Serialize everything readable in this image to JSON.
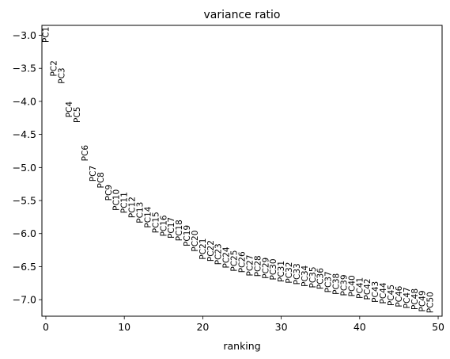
{
  "chart_data": {
    "type": "scatter",
    "title": "variance ratio",
    "xlabel": "ranking",
    "ylabel": "",
    "xlim": [
      -0.5,
      50.5
    ],
    "ylim": [
      -7.25,
      -2.85
    ],
    "xticks": [
      0,
      10,
      20,
      30,
      40,
      50
    ],
    "yticks": [
      -3.0,
      -3.5,
      -4.0,
      -4.5,
      -5.0,
      -5.5,
      -6.0,
      -6.5,
      -7.0
    ],
    "ytick_labels": [
      "−3.0",
      "−3.5",
      "−4.0",
      "−4.5",
      "−5.0",
      "−5.5",
      "−6.0",
      "−6.5",
      "−7.0"
    ],
    "grid": false,
    "points": [
      {
        "label": "PC1",
        "x": 0,
        "y": -2.87
      },
      {
        "label": "PC2",
        "x": 1,
        "y": -3.38
      },
      {
        "label": "PC3",
        "x": 2,
        "y": -3.49
      },
      {
        "label": "PC4",
        "x": 3,
        "y": -4.0
      },
      {
        "label": "PC5",
        "x": 4,
        "y": -4.08
      },
      {
        "label": "PC6",
        "x": 5,
        "y": -4.66
      },
      {
        "label": "PC7",
        "x": 6,
        "y": -4.97
      },
      {
        "label": "PC8",
        "x": 7,
        "y": -5.07
      },
      {
        "label": "PC9",
        "x": 8,
        "y": -5.26
      },
      {
        "label": "PC10",
        "x": 9,
        "y": -5.33
      },
      {
        "label": "PC11",
        "x": 10,
        "y": -5.37
      },
      {
        "label": "PC12",
        "x": 11,
        "y": -5.44
      },
      {
        "label": "PC13",
        "x": 12,
        "y": -5.52
      },
      {
        "label": "PC14",
        "x": 13,
        "y": -5.59
      },
      {
        "label": "PC15",
        "x": 14,
        "y": -5.67
      },
      {
        "label": "PC16",
        "x": 15,
        "y": -5.72
      },
      {
        "label": "PC17",
        "x": 16,
        "y": -5.75
      },
      {
        "label": "PC18",
        "x": 17,
        "y": -5.79
      },
      {
        "label": "PC19",
        "x": 18,
        "y": -5.87
      },
      {
        "label": "PC20",
        "x": 19,
        "y": -5.95
      },
      {
        "label": "PC21",
        "x": 20,
        "y": -6.07
      },
      {
        "label": "PC22",
        "x": 21,
        "y": -6.1
      },
      {
        "label": "PC23",
        "x": 22,
        "y": -6.15
      },
      {
        "label": "PC24",
        "x": 23,
        "y": -6.2
      },
      {
        "label": "PC25",
        "x": 24,
        "y": -6.25
      },
      {
        "label": "PC26",
        "x": 25,
        "y": -6.27
      },
      {
        "label": "PC27",
        "x": 26,
        "y": -6.32
      },
      {
        "label": "PC28",
        "x": 27,
        "y": -6.33
      },
      {
        "label": "PC29",
        "x": 28,
        "y": -6.36
      },
      {
        "label": "PC30",
        "x": 29,
        "y": -6.38
      },
      {
        "label": "PC31",
        "x": 30,
        "y": -6.41
      },
      {
        "label": "PC32",
        "x": 31,
        "y": -6.43
      },
      {
        "label": "PC33",
        "x": 32,
        "y": -6.45
      },
      {
        "label": "PC34",
        "x": 33,
        "y": -6.48
      },
      {
        "label": "PC35",
        "x": 34,
        "y": -6.5
      },
      {
        "label": "PC36",
        "x": 35,
        "y": -6.52
      },
      {
        "label": "PC37",
        "x": 36,
        "y": -6.57
      },
      {
        "label": "PC38",
        "x": 37,
        "y": -6.6
      },
      {
        "label": "PC39",
        "x": 38,
        "y": -6.62
      },
      {
        "label": "PC40",
        "x": 39,
        "y": -6.63
      },
      {
        "label": "PC41",
        "x": 40,
        "y": -6.66
      },
      {
        "label": "PC42",
        "x": 41,
        "y": -6.68
      },
      {
        "label": "PC43",
        "x": 42,
        "y": -6.72
      },
      {
        "label": "PC44",
        "x": 43,
        "y": -6.74
      },
      {
        "label": "PC45",
        "x": 44,
        "y": -6.77
      },
      {
        "label": "PC46",
        "x": 45,
        "y": -6.79
      },
      {
        "label": "PC47",
        "x": 46,
        "y": -6.81
      },
      {
        "label": "PC48",
        "x": 47,
        "y": -6.83
      },
      {
        "label": "PC49",
        "x": 48,
        "y": -6.86
      },
      {
        "label": "PC50",
        "x": 49,
        "y": -6.88
      }
    ]
  }
}
